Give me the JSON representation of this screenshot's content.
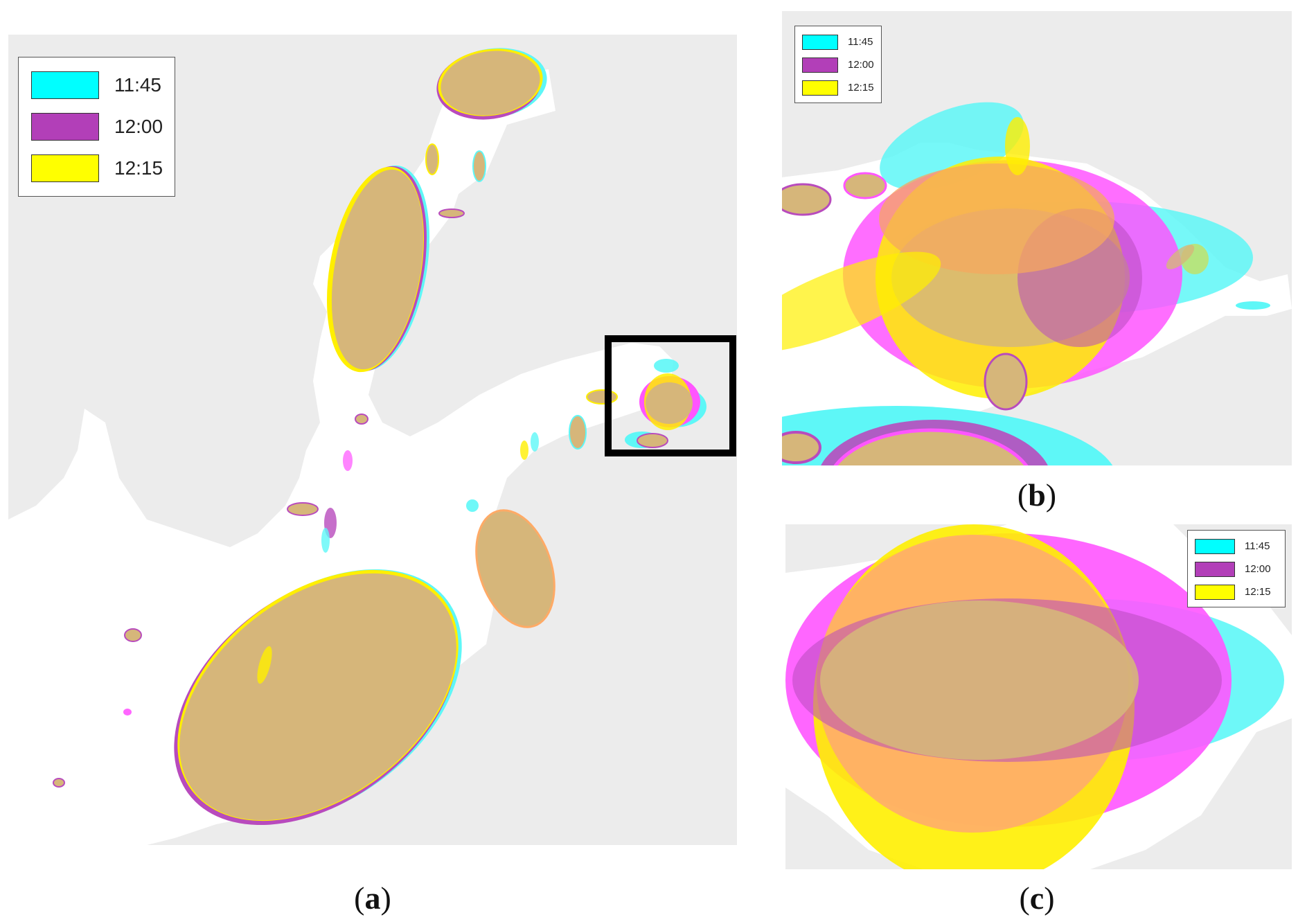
{
  "colors": {
    "background": "#ececec",
    "water": "#ffffff",
    "t1145": "#5ef7f7",
    "t1200": "#b84bbd",
    "t1215": "#ffef00",
    "overlap": "#d6b67a",
    "zoom_box": "#000000"
  },
  "legend": {
    "items": [
      {
        "label": "11:45",
        "color": "#00ffff"
      },
      {
        "label": "12:00",
        "color": "#b23fb8"
      },
      {
        "label": "12:15",
        "color": "#ffff00"
      }
    ]
  },
  "captions": {
    "a": {
      "open": "(",
      "letter": "a",
      "close": ")"
    },
    "b": {
      "open": "(",
      "letter": "b",
      "close": ")"
    },
    "c": {
      "open": "(",
      "letter": "c",
      "close": ")"
    }
  }
}
